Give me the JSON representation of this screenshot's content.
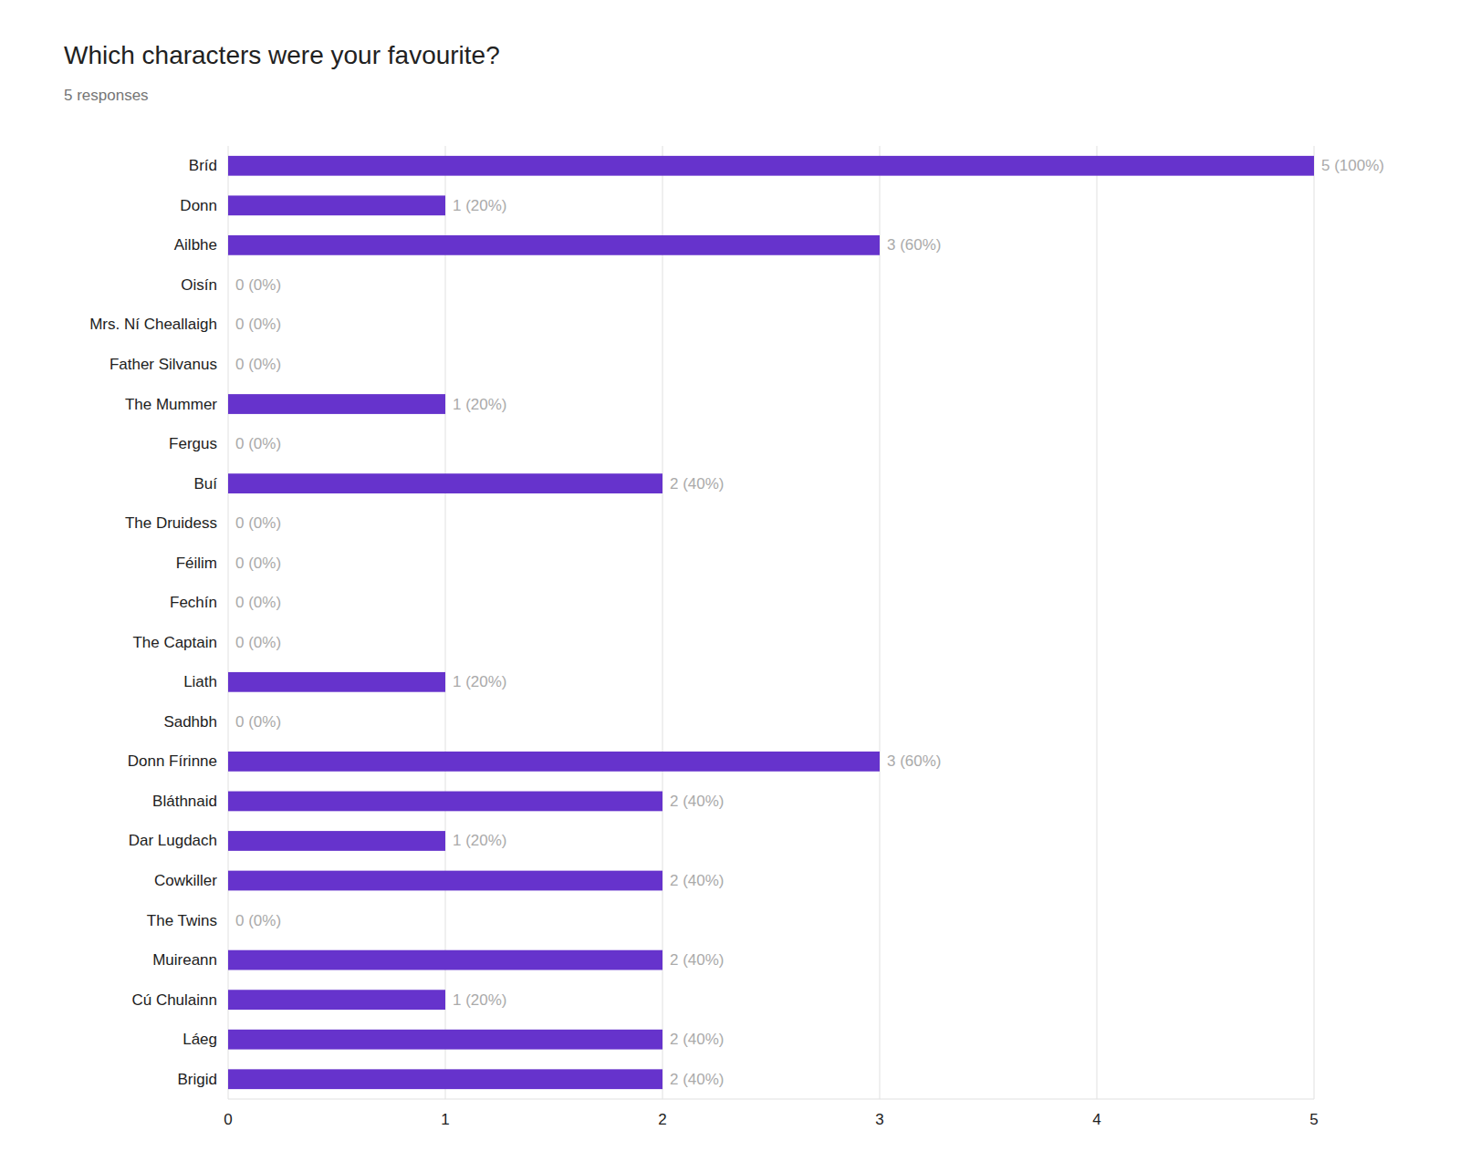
{
  "chart_data": {
    "type": "bar",
    "orientation": "horizontal",
    "title": "Which characters were your favourite?",
    "subtitle": "5 responses",
    "categories": [
      "Bríd",
      "Donn",
      "Ailbhe",
      "Oisín",
      "Mrs. Ní Cheallaigh",
      "Father Silvanus",
      "The Mummer",
      "Fergus",
      "Buí",
      "The Druidess",
      "Féilim",
      "Fechín",
      "The Captain",
      "Liath",
      "Sadhbh",
      "Donn Fírinne",
      "Bláthnaid",
      "Dar Lugdach",
      "Cowkiller",
      "The Twins",
      "Muireann",
      "Cú Chulainn",
      "Láeg",
      "Brigid"
    ],
    "values": [
      5,
      1,
      3,
      0,
      0,
      0,
      1,
      0,
      2,
      0,
      0,
      0,
      0,
      1,
      0,
      3,
      2,
      1,
      2,
      0,
      2,
      1,
      2,
      2
    ],
    "value_labels": [
      "5 (100%)",
      "1 (20%)",
      "3 (60%)",
      "0 (0%)",
      "0 (0%)",
      "0 (0%)",
      "1 (20%)",
      "0 (0%)",
      "2 (40%)",
      "0 (0%)",
      "0 (0%)",
      "0 (0%)",
      "0 (0%)",
      "1 (20%)",
      "0 (0%)",
      "3 (60%)",
      "2 (40%)",
      "1 (20%)",
      "2 (40%)",
      "0 (0%)",
      "2 (40%)",
      "1 (20%)",
      "2 (40%)",
      "2 (40%)"
    ],
    "data_labels": true,
    "color": "#6633cc",
    "xlim": [
      0,
      5
    ],
    "xticks": [
      0,
      1,
      2,
      3,
      4,
      5
    ],
    "grid": true
  }
}
